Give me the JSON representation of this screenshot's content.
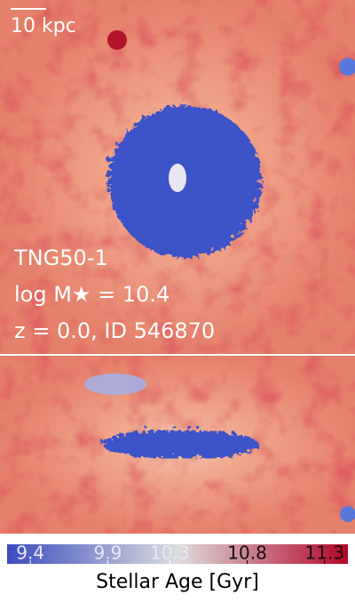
{
  "chart_data": {
    "type": "heatmap",
    "scale_bar": "10 kpc",
    "annotations": [
      "TNG50-1",
      "log M★ = 10.4",
      "z = 0.0, ID 546870"
    ],
    "colorbar": {
      "label": "Stellar Age [Gyr]",
      "lim": [
        9.25,
        11.45
      ],
      "ticks": [
        9.4,
        9.9,
        10.3,
        10.8,
        11.3
      ],
      "colors": [
        "#3b4cc0",
        "#dcdddd",
        "#b40426"
      ]
    }
  }
}
